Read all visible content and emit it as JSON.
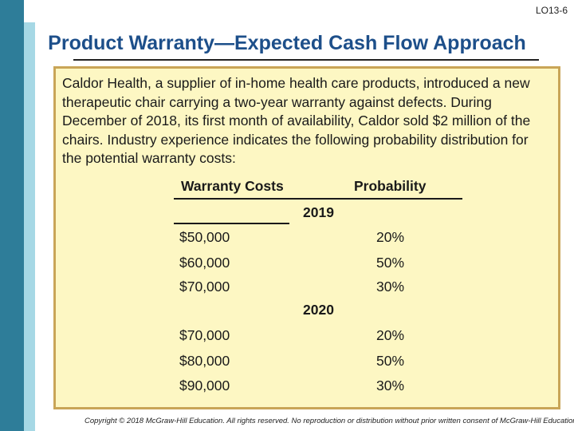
{
  "slide": {
    "lo_tag": "LO13-6",
    "title": "Product Warranty—Expected Cash Flow Approach",
    "paragraph": "Caldor Health, a supplier of in-home health care products, introduced a new therapeutic chair carrying a two-year warranty against defects. During December of 2018, its first month of availability, Caldor sold $2 million of the chairs. Industry experience indicates the following probability distribution for the potential warranty costs:",
    "copyright": "Copyright © 2018 McGraw-Hill Education. All rights reserved. No reproduction or distribution without prior written consent of McGraw-Hill Education."
  },
  "table": {
    "col_costs": "Warranty Costs",
    "col_prob": "Probability",
    "groups": [
      {
        "year": "2019",
        "rows": [
          {
            "cost": "$50,000",
            "prob": "20%"
          },
          {
            "cost": "$60,000",
            "prob": "50%"
          },
          {
            "cost": "$70,000",
            "prob": "30%"
          }
        ]
      },
      {
        "year": "2020",
        "rows": [
          {
            "cost": "$70,000",
            "prob": "20%"
          },
          {
            "cost": "$80,000",
            "prob": "50%"
          },
          {
            "cost": "$90,000",
            "prob": "30%"
          }
        ]
      }
    ]
  },
  "colors": {
    "title": "#1d4f8a",
    "box_fill": "#fdf7c3",
    "box_border": "#c9a557",
    "sidebar_dark": "#2e7d99",
    "sidebar_light": "#a6d8e5"
  }
}
